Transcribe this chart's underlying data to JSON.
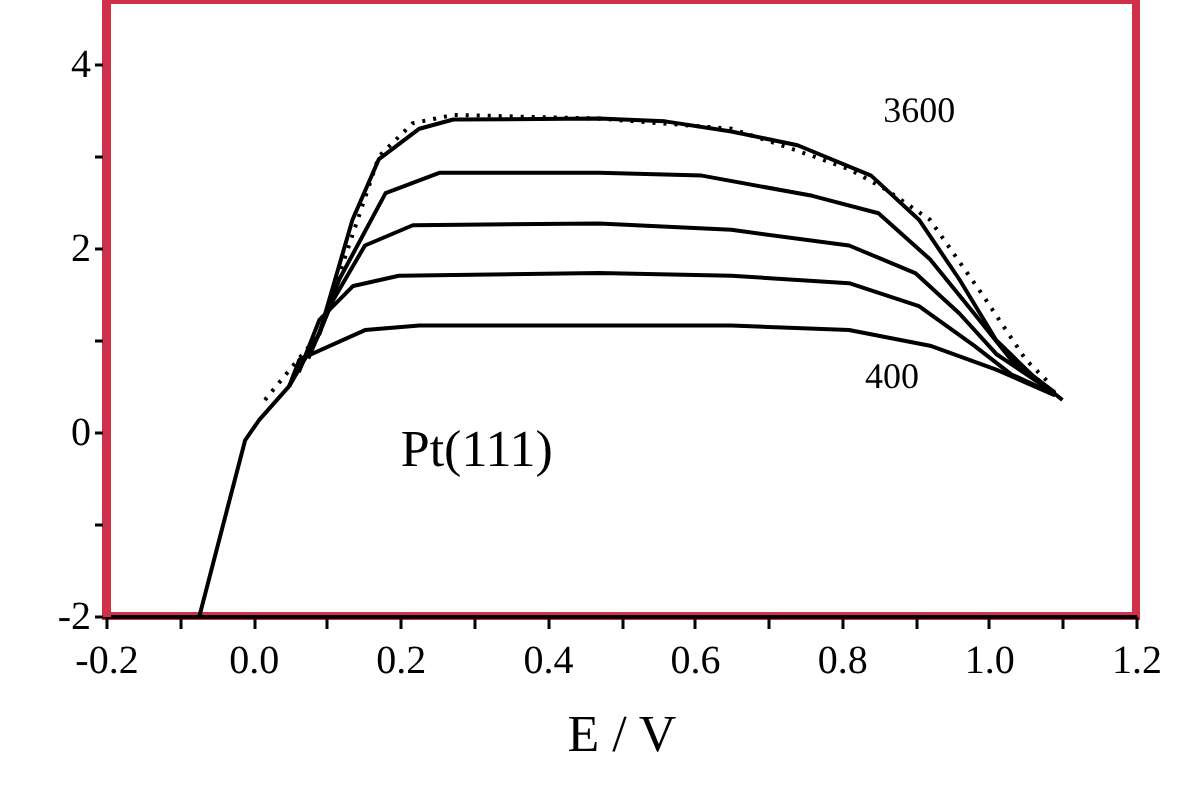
{
  "chart_data": {
    "type": "line",
    "xlabel": "E / V",
    "xlim": [
      -0.2,
      1.2
    ],
    "ylim": [
      -2,
      4.7
    ],
    "xticks": [
      -0.2,
      {
        "value": -0.1,
        "label": null
      },
      {
        "value": 0,
        "label": "0.0"
      },
      {
        "value": 0.1,
        "label": null
      },
      0.2,
      {
        "value": 0.3,
        "label": null
      },
      0.4,
      {
        "value": 0.5,
        "label": null
      },
      0.6,
      {
        "value": 0.7,
        "label": null
      },
      0.8,
      {
        "value": 0.9,
        "label": null
      },
      {
        "value": 1,
        "label": "1.0"
      },
      {
        "value": 1.1,
        "label": null
      },
      1.2
    ],
    "yticks": [
      -2,
      {
        "value": -1,
        "label": null
      },
      0,
      {
        "value": 1,
        "label": null
      },
      2,
      {
        "value": 3,
        "label": null
      },
      4
    ],
    "grid": false,
    "marker": "none",
    "series": [
      {
        "name": "3600",
        "color": "#000000",
        "line_style": "solid",
        "x": [
          -0.073,
          -0.011,
          0.008,
          0.049,
          0.09,
          0.135,
          0.171,
          0.226,
          0.272,
          0.47,
          0.56,
          0.65,
          0.74,
          0.84,
          0.905,
          0.96,
          1.01,
          1.06,
          1.1
        ],
        "values": [
          -2,
          -0.09,
          0.13,
          0.5,
          1.07,
          2.31,
          2.97,
          3.3,
          3.4,
          3.41,
          3.38,
          3.27,
          3.12,
          2.79,
          2.31,
          1.66,
          1.0,
          0.61,
          0.35
        ]
      },
      {
        "color": "#000000",
        "line_style": "dotted",
        "x": [
          0.016,
          0.09,
          0.171,
          0.217,
          0.272,
          0.47,
          0.65,
          0.74,
          0.81,
          0.86,
          0.92,
          0.99,
          1.05,
          1.08
        ],
        "values": [
          0.35,
          1.07,
          3.0,
          3.36,
          3.45,
          3.41,
          3.3,
          3.06,
          2.86,
          2.64,
          2.31,
          1.51,
          0.79,
          0.55
        ]
      },
      {
        "color": "#000000",
        "line_style": "solid",
        "x": [
          0.09,
          0.117,
          0.18,
          0.253,
          0.47,
          0.61,
          0.76,
          0.85,
          0.92,
          0.98,
          1.03,
          1.09
        ],
        "values": [
          1.07,
          1.66,
          2.6,
          2.82,
          2.82,
          2.79,
          2.57,
          2.38,
          1.88,
          1.29,
          0.79,
          0.43
        ]
      },
      {
        "color": "#000000",
        "line_style": "solid",
        "x": [
          0.075,
          0.109,
          0.152,
          0.217,
          0.47,
          0.65,
          0.81,
          0.9,
          0.96,
          1.01,
          1.09
        ],
        "values": [
          0.8,
          1.44,
          2.03,
          2.25,
          2.27,
          2.2,
          2.03,
          1.73,
          1.29,
          0.85,
          0.42
        ]
      },
      {
        "color": "#000000",
        "line_style": "solid",
        "x": [
          0.062,
          0.09,
          0.136,
          0.198,
          0.47,
          0.65,
          0.81,
          0.905,
          0.98,
          1.03,
          1.09
        ],
        "values": [
          0.65,
          1.22,
          1.59,
          1.7,
          1.73,
          1.7,
          1.62,
          1.37,
          0.94,
          0.63,
          0.41
        ]
      },
      {
        "name": "400",
        "color": "#000000",
        "line_style": "solid",
        "x": [
          0.049,
          0.063,
          0.152,
          0.226,
          0.47,
          0.65,
          0.81,
          0.92,
          1.01,
          1.09
        ],
        "values": [
          0.5,
          0.79,
          1.11,
          1.16,
          1.16,
          1.16,
          1.11,
          0.94,
          0.68,
          0.4
        ]
      }
    ],
    "annotations": [
      "Pt(111)"
    ]
  }
}
